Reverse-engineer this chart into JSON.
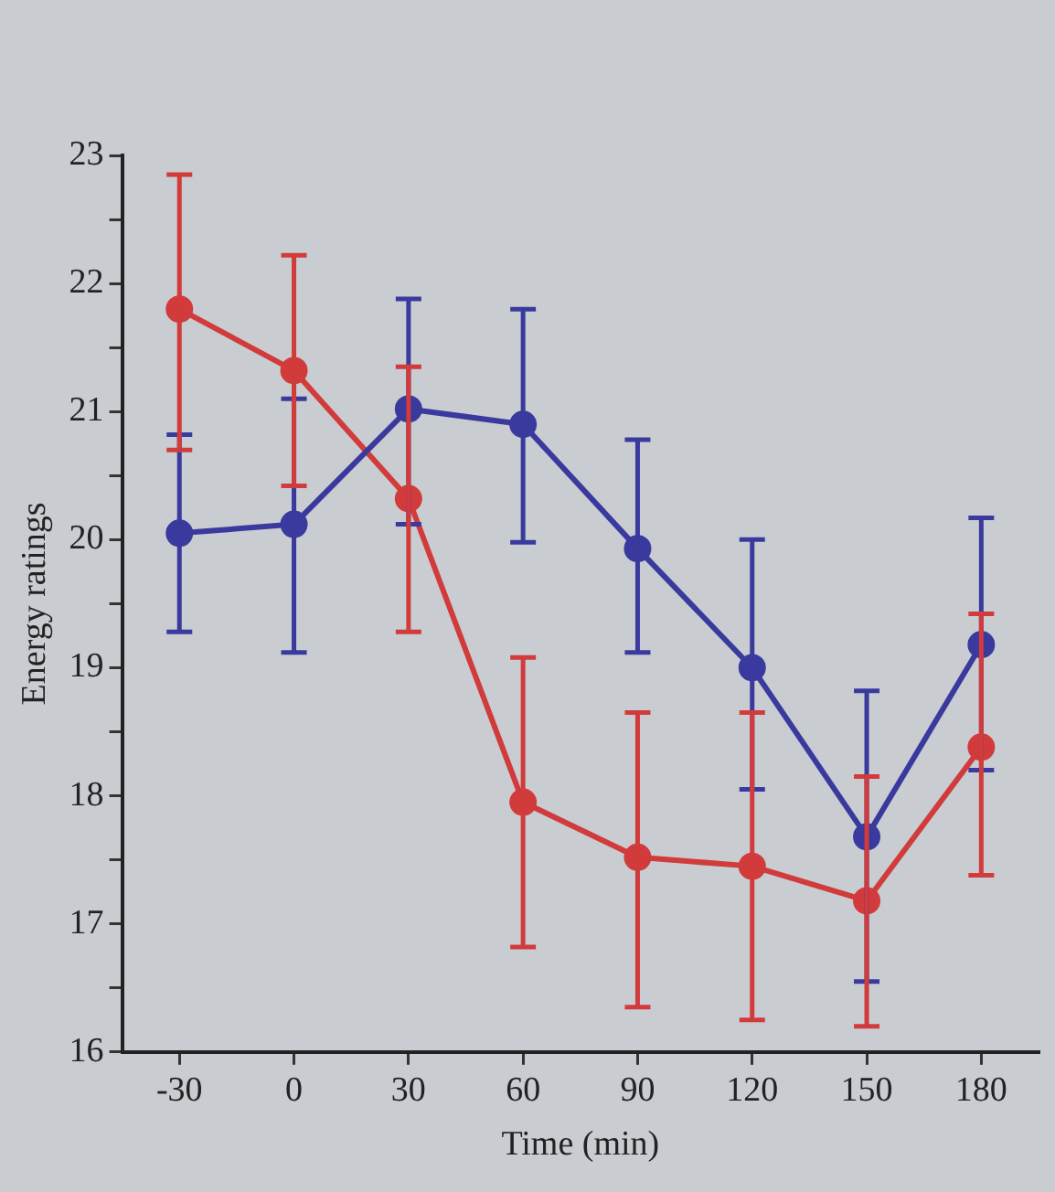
{
  "chart_data": {
    "type": "line",
    "xlabel": "Time (min)",
    "ylabel": "Energy ratings",
    "x": [
      -30,
      0,
      30,
      60,
      90,
      120,
      150,
      180
    ],
    "series": [
      {
        "color": "#3a3a9e",
        "values": [
          20.05,
          20.12,
          21.02,
          20.9,
          19.93,
          19.0,
          17.68,
          19.18
        ],
        "errors": [
          [
            19.28,
            20.82
          ],
          [
            19.12,
            21.1
          ],
          [
            20.12,
            21.88
          ],
          [
            19.98,
            21.8
          ],
          [
            19.12,
            20.78
          ],
          [
            18.05,
            20.0
          ],
          [
            16.55,
            18.82
          ],
          [
            18.2,
            20.17
          ]
        ]
      },
      {
        "color": "#d23b3b",
        "values": [
          21.8,
          21.32,
          20.32,
          17.95,
          17.52,
          17.45,
          17.18,
          18.38
        ],
        "errors": [
          [
            20.7,
            22.85
          ],
          [
            20.42,
            22.22
          ],
          [
            19.28,
            21.35
          ],
          [
            16.82,
            19.08
          ],
          [
            16.35,
            18.65
          ],
          [
            16.25,
            18.65
          ],
          [
            16.2,
            18.15
          ],
          [
            17.38,
            19.42
          ]
        ]
      }
    ],
    "xlim": [
      -45,
      195
    ],
    "xticks": [
      -30,
      0,
      30,
      60,
      90,
      120,
      150,
      180
    ],
    "ylim": [
      16,
      23
    ],
    "yticks": [
      16,
      {
        "value": 16.5,
        "label": null
      },
      17,
      {
        "value": 17.5,
        "label": null
      },
      18,
      {
        "value": 18.5,
        "label": null
      },
      19,
      {
        "value": 19.5,
        "label": null
      },
      20,
      {
        "value": 20.5,
        "label": null
      },
      21,
      {
        "value": 21.5,
        "label": null
      },
      22,
      {
        "value": 22.5,
        "label": null
      },
      23
    ],
    "grid": false,
    "legend": false,
    "marker": "circle",
    "line_style": "solid"
  }
}
